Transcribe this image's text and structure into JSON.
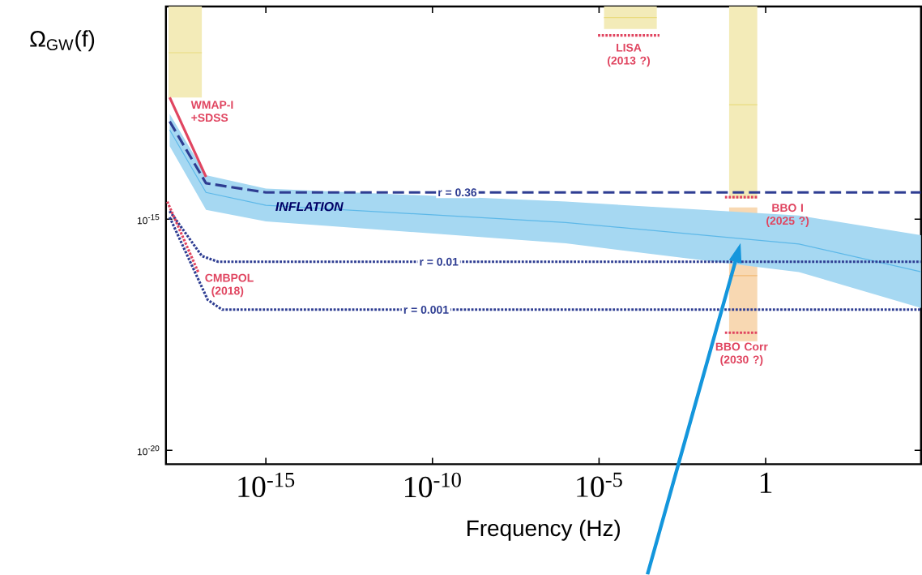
{
  "chart_data": {
    "type": "line",
    "xlabel": "Frequency (Hz)",
    "ylabel": "Ω$_{GW}$(f)",
    "log": "xy",
    "marker": "none",
    "xlim": [
      1e-18,
      46000.0
    ],
    "ylim": [
      5e-21,
      4e-11
    ],
    "xticks": [
      {
        "value": 1e-15,
        "label": "10$^{-15}$"
      },
      {
        "value": 1e-10,
        "label": "10$^{-10}$"
      },
      {
        "value": 1e-05,
        "label": "10$^{-5}$"
      },
      {
        "value": 1,
        "label": "1"
      }
    ],
    "yticks": [
      {
        "value": 1e-15,
        "label": "10$^{-15}$"
      },
      {
        "value": 1e-20,
        "label": "10$^{-20}$"
      }
    ],
    "series": [
      {
        "type": "line",
        "color": "#e9db7e",
        "x": [
          1.2e-18,
          1.2e-17
        ],
        "values": [
          4e-12,
          4e-12
        ],
        "lower": [
          4.3e-13,
          4.3e-13
        ],
        "upper": [
          4e-11,
          4e-11
        ]
      },
      {
        "type": "line",
        "color": "#e9db7e",
        "x": [
          1.4e-05,
          0.00054
        ],
        "values": [
          2.3e-11,
          2.3e-11
        ],
        "lower": [
          1.3e-11,
          1.3e-11
        ],
        "upper": [
          4e-11,
          4e-11
        ]
      },
      {
        "type": "line",
        "color": "#e9db7e",
        "x": [
          0.08,
          0.56
        ],
        "values": [
          3e-13,
          3e-13
        ],
        "lower": [
          2.8e-15,
          2.8e-15
        ],
        "upper": [
          4e-11,
          4e-11
        ]
      },
      {
        "type": "line",
        "color": "#f2b873",
        "x": [
          0.08,
          0.56
        ],
        "values": [
          6e-17,
          6e-17
        ],
        "lower": [
          2.3e-18,
          2.3e-18
        ],
        "upper": [
          1.8e-15,
          1.8e-15
        ]
      },
      {
        "type": "line",
        "color": "#5db8e8",
        "x": [
          1.3e-18,
          1.6e-17,
          1e-15,
          1e-06,
          10.0,
          46000.0
        ],
        "values": [
          8.5e-14,
          3.8e-15,
          2e-15,
          8.5e-16,
          2.9e-16,
          7.3e-17
        ],
        "lower": [
          3.8e-14,
          1.6e-15,
          9e-16,
          3e-16,
          7.2e-17,
          1.2e-17
        ],
        "upper": [
          1.9e-13,
          9e-15,
          4.6e-15,
          2.4e-15,
          1.2e-15,
          4.5e-16
        ]
      },
      {
        "name": "r = 0.36",
        "color": "#2e3d92",
        "line_style": "dashed",
        "x": [
          1.3e-18,
          1.6e-17,
          1e-15,
          46000.0
        ],
        "values": [
          1.3e-13,
          6e-15,
          3.8e-15,
          3.8e-15
        ]
      },
      {
        "name": "r = 0.01",
        "color": "#2e3d92",
        "line_style": "dotted",
        "x": [
          1.3e-18,
          1.2e-17,
          3.7e-17,
          46000.0
        ],
        "values": [
          1.5e-15,
          1.6e-16,
          1.2e-16,
          1.2e-16
        ]
      },
      {
        "name": "r = 0.001",
        "color": "#2e3d92",
        "line_style": "dotted",
        "x": [
          1.3e-18,
          1.8e-17,
          4.9e-17,
          46000.0
        ],
        "values": [
          1.1e-15,
          1.8e-17,
          1.1e-17,
          1.1e-17
        ]
      },
      {
        "name": "WMAP-I +SDSS",
        "color": "#e04560",
        "line_style": "solid",
        "x": [
          1.3e-18,
          1.6e-17
        ],
        "values": [
          4.3e-13,
          8.2e-15
        ]
      },
      {
        "name": "CMBPOL (2018)",
        "color": "#e04560",
        "line_style": "dotted",
        "x": [
          1.1e-18,
          9.3e-18
        ],
        "values": [
          2.4e-15,
          7.2e-17
        ]
      },
      {
        "name": "LISA (2013 ?)",
        "color": "#e04560",
        "line_style": "dotted",
        "x": [
          9.3e-06,
          0.00065
        ],
        "values": [
          9.5e-12,
          9.5e-12
        ]
      },
      {
        "name": "BBO I (2025 ?)",
        "color": "#e04560",
        "line_style": "dotted",
        "x": [
          0.06,
          0.6
        ],
        "values": [
          3e-15,
          3e-15
        ]
      },
      {
        "name": "BBO Corr (2030 ?)",
        "color": "#e04560",
        "line_style": "dotted",
        "x": [
          0.06,
          0.6
        ],
        "values": [
          3.5e-18,
          3.5e-18
        ]
      }
    ],
    "annotations": [
      "*INFLATION*"
    ]
  }
}
